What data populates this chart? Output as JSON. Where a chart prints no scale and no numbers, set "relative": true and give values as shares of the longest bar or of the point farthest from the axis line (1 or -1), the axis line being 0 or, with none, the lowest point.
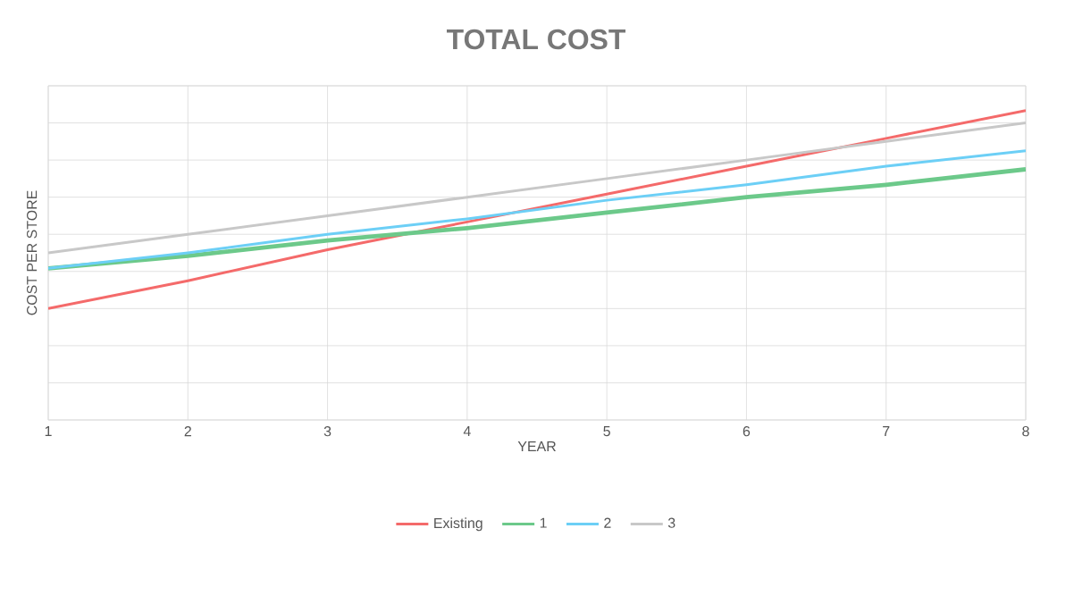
{
  "chart_data": {
    "type": "line",
    "title": "TOTAL COST",
    "xlabel": "YEAR",
    "ylabel": "COST PER STORE",
    "x": [
      1,
      2,
      3,
      4,
      5,
      6,
      7,
      8
    ],
    "xlim": [
      1,
      8
    ],
    "xticks": [
      1,
      2,
      3,
      4,
      5,
      6,
      7,
      8
    ],
    "relative": true,
    "grid": true,
    "legend": "bottom",
    "series": [
      {
        "name": "Existing",
        "color": "#f46a6a",
        "values": [
          0.36,
          0.45,
          0.55,
          0.64,
          0.73,
          0.82,
          0.91,
          1.0
        ]
      },
      {
        "name": "1",
        "color": "#6cc98a",
        "values": [
          0.49,
          0.53,
          0.58,
          0.62,
          0.67,
          0.72,
          0.76,
          0.81
        ]
      },
      {
        "name": "2",
        "color": "#6ccff6",
        "values": [
          0.49,
          0.54,
          0.6,
          0.65,
          0.71,
          0.76,
          0.82,
          0.87
        ]
      },
      {
        "name": "3",
        "color": "#c8c8c8",
        "values": [
          0.54,
          0.6,
          0.66,
          0.72,
          0.78,
          0.84,
          0.9,
          0.96
        ]
      }
    ]
  }
}
